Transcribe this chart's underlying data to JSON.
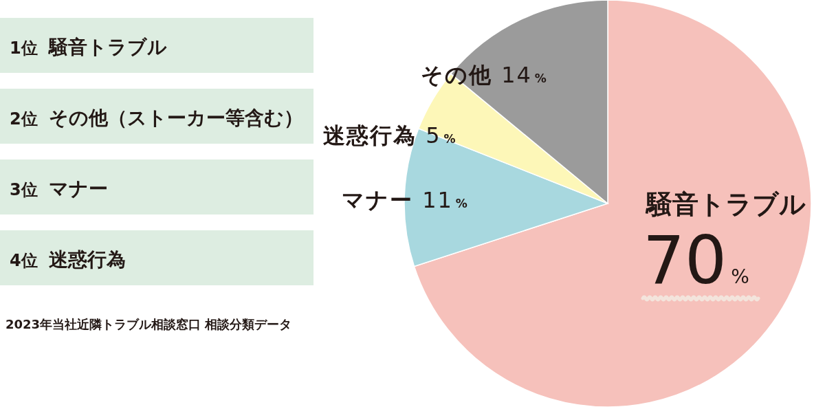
{
  "chart_data": {
    "type": "pie",
    "categories": [
      "騒音トラブル",
      "マナー",
      "迷惑行為",
      "その他"
    ],
    "values": [
      70,
      11,
      5,
      14
    ],
    "colors": [
      "#f6c1bb",
      "#a8d8df",
      "#fdf7b8",
      "#9b9b9b"
    ],
    "value_labels": [
      "70%",
      "11%",
      "5%",
      "14%"
    ],
    "annotations": [
      "1位 騒音トラブル",
      "2位 その他（ストーカー等含む）",
      "3位 マナー",
      "4位 迷惑行為",
      "2023年当社近隣トラブル相談窓口 相談分類データ"
    ]
  }
}
